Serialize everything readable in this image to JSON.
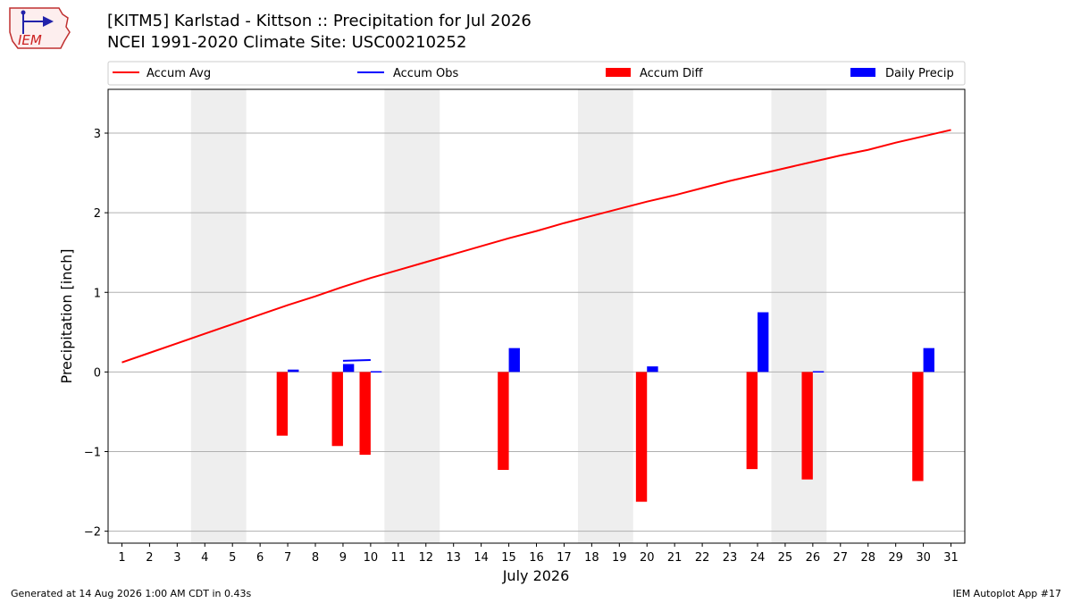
{
  "header": {
    "title_line1": "[KITM5] Karlstad - Kittson :: Precipitation for Jul 2026",
    "title_line2": "NCEI 1991-2020 Climate Site: USC00210252"
  },
  "logo": {
    "text": "IEM",
    "icon": "iem-logo-icon"
  },
  "footer": {
    "generated": "Generated at 14 Aug 2026 1:00 AM CDT in 0.43s",
    "app": "IEM Autoplot App #17"
  },
  "colors": {
    "accum_avg": "#ff0000",
    "accum_obs": "#0000ff",
    "accum_diff": "#ff0000",
    "daily_precip": "#0000ff",
    "weekend_shade": "#eeeeee",
    "grid": "#b0b0b0"
  },
  "chart_data": {
    "type": "bar",
    "xlabel": "July 2026",
    "ylabel": "Precipitation [inch]",
    "x": [
      1,
      2,
      3,
      4,
      5,
      6,
      7,
      8,
      9,
      10,
      11,
      12,
      13,
      14,
      15,
      16,
      17,
      18,
      19,
      20,
      21,
      22,
      23,
      24,
      25,
      26,
      27,
      28,
      29,
      30,
      31
    ],
    "xlim": [
      0.5,
      31.5
    ],
    "ylim": [
      -2.15,
      3.55
    ],
    "yticks": [
      -2,
      -1,
      0,
      1,
      2,
      3
    ],
    "ytick_labels": [
      "−2",
      "−1",
      "0",
      "1",
      "2",
      "3"
    ],
    "grid": "horizontal",
    "legend_position": "top",
    "shaded_weekend_spans": [
      [
        3.5,
        5.5
      ],
      [
        10.5,
        12.5
      ],
      [
        17.5,
        19.5
      ],
      [
        24.5,
        26.5
      ]
    ],
    "series": [
      {
        "name": "Accum Avg",
        "kind": "line",
        "x": [
          1,
          2,
          3,
          4,
          5,
          6,
          7,
          8,
          9,
          10,
          11,
          12,
          13,
          14,
          15,
          16,
          17,
          18,
          19,
          20,
          21,
          22,
          23,
          24,
          25,
          26,
          27,
          28,
          29,
          30,
          31
        ],
        "values": [
          0.12,
          0.24,
          0.36,
          0.48,
          0.6,
          0.72,
          0.84,
          0.95,
          1.07,
          1.18,
          1.28,
          1.38,
          1.48,
          1.58,
          1.68,
          1.77,
          1.87,
          1.96,
          2.05,
          2.14,
          2.22,
          2.31,
          2.4,
          2.48,
          2.56,
          2.64,
          2.72,
          2.79,
          2.88,
          2.96,
          3.04
        ]
      },
      {
        "name": "Accum Obs",
        "kind": "line",
        "x": [
          9,
          10
        ],
        "values": [
          0.14,
          0.15
        ]
      },
      {
        "name": "Accum Diff",
        "kind": "bar",
        "x": [
          7,
          9,
          10,
          15,
          20,
          24,
          26,
          30
        ],
        "values": [
          -0.8,
          -0.93,
          -1.04,
          -1.23,
          -1.63,
          -1.22,
          -1.35,
          -1.37
        ]
      },
      {
        "name": "Daily Precip",
        "kind": "bar",
        "x": [
          7,
          9,
          10,
          15,
          20,
          24,
          26,
          30
        ],
        "values": [
          0.03,
          0.1,
          0.01,
          0.3,
          0.07,
          0.75,
          0.01,
          0.3
        ]
      }
    ]
  }
}
